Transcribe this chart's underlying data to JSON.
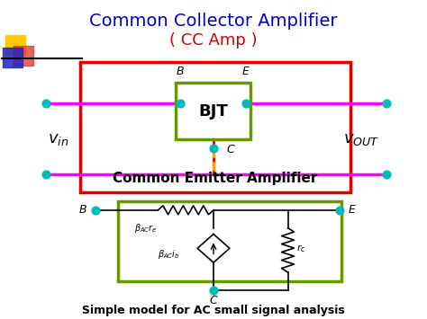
{
  "title": "Common Collector Amplifier",
  "subtitle": "( CC Amp )",
  "title_color": "#0000cc",
  "subtitle_color": "#cc0000",
  "label_center": "Common Emitter Amplifier",
  "bottom_label": "Simple model for AC small signal analysis",
  "bg_color": "#ffffff",
  "line_color_magenta": "#ff00ff",
  "line_color_orange_dashed": "#ffaa00",
  "line_color_red": "#dd0000",
  "node_color": "#00bbbb"
}
